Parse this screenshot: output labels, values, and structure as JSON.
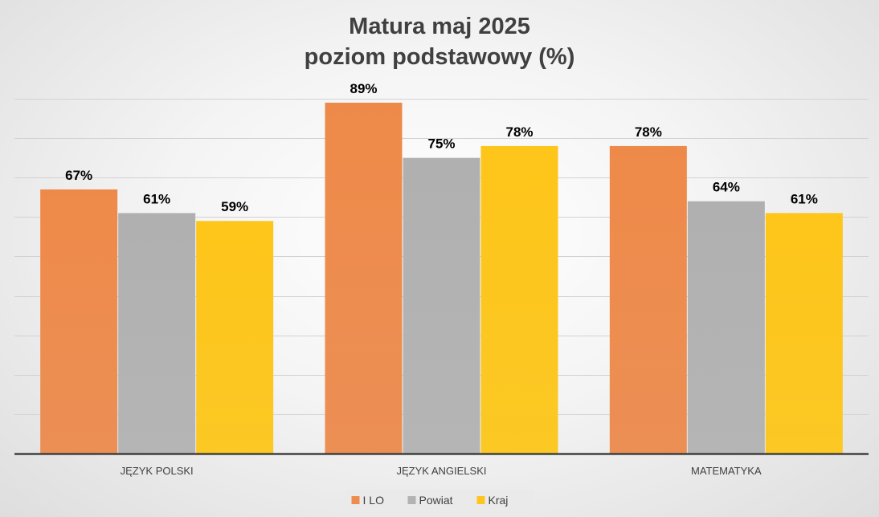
{
  "chart_data": {
    "type": "bar",
    "title": "Matura maj 2025",
    "subtitle": "poziom podstawowy (%)",
    "categories": [
      "JĘZYK POLSKI",
      "JĘZYK ANGIELSKI",
      "MATEMATYKA"
    ],
    "series": [
      {
        "name": "I LO",
        "values": [
          67,
          89,
          78
        ],
        "color": "#ED8C4D"
      },
      {
        "name": "Powiat",
        "values": [
          61,
          75,
          64
        ],
        "color": "#B3B3B3"
      },
      {
        "name": "Kraj",
        "values": [
          59,
          78,
          61
        ],
        "color": "#FDC61F"
      }
    ],
    "data_labels": [
      [
        "67%",
        "89%",
        "78%"
      ],
      [
        "61%",
        "75%",
        "64%"
      ],
      [
        "59%",
        "78%",
        "61%"
      ]
    ],
    "ylim": [
      0,
      90
    ],
    "xlabel": "",
    "ylabel": "",
    "grid": true,
    "legend_position": "bottom"
  }
}
